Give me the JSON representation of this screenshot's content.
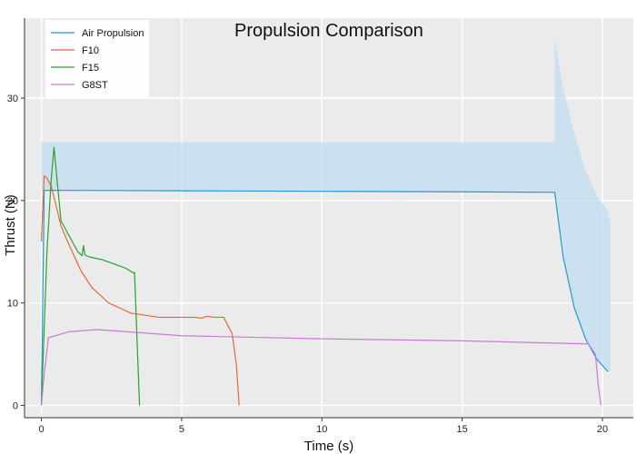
{
  "chart_data": {
    "type": "line",
    "title": "Propulsion Comparison",
    "xlabel": "Time (s)",
    "ylabel": "Thrust (N)",
    "xlim": [
      -0.6,
      21.1
    ],
    "ylim": [
      -1.2,
      37.8
    ],
    "xticks": [
      0,
      5,
      10,
      15,
      20
    ],
    "yticks": [
      0,
      10,
      20,
      30
    ],
    "grid": true,
    "legend_position": "top-left",
    "background": "#ebebeb",
    "series": [
      {
        "name": "Air Propulsion",
        "color": "#1f9ad6",
        "x": [
          0,
          0.05,
          0.1,
          5,
          10,
          15,
          18.3,
          18.6,
          19.0,
          19.4,
          19.8,
          20.2
        ],
        "y": [
          0,
          10,
          21.0,
          20.95,
          20.9,
          20.85,
          20.8,
          14.5,
          9.5,
          6.5,
          4.5,
          3.3
        ]
      },
      {
        "name": "F10",
        "color": "#e8663a",
        "x": [
          0,
          0.1,
          0.2,
          0.35,
          0.5,
          0.7,
          1.0,
          1.4,
          1.8,
          2.4,
          3.2,
          4.2,
          5.5,
          5.7,
          5.9,
          6.2,
          6.5,
          6.8,
          6.95,
          7.05
        ],
        "y": [
          16,
          22.4,
          22.2,
          21.4,
          19.8,
          17.5,
          15.6,
          13.2,
          11.5,
          10.0,
          9.0,
          8.6,
          8.6,
          8.5,
          8.7,
          8.6,
          8.6,
          7.0,
          4.0,
          0
        ]
      },
      {
        "name": "F15",
        "color": "#2ca02c",
        "x": [
          0,
          0.2,
          0.35,
          0.45,
          0.7,
          1.0,
          1.3,
          1.45,
          1.5,
          1.55,
          1.7,
          2.2,
          2.6,
          3.0,
          3.3,
          3.32,
          3.5
        ],
        "y": [
          0,
          15,
          22,
          25.2,
          18.0,
          16.5,
          15.0,
          14.6,
          15.6,
          14.7,
          14.5,
          14.2,
          13.8,
          13.4,
          12.9,
          13.0,
          0
        ]
      },
      {
        "name": "G8ST",
        "color": "#c97bd6",
        "x": [
          0,
          0.1,
          0.25,
          1.0,
          2.0,
          3.0,
          5.0,
          10,
          15,
          19.5,
          19.75,
          19.85,
          19.95
        ],
        "y": [
          0,
          3.0,
          6.6,
          7.2,
          7.4,
          7.2,
          6.8,
          6.5,
          6.3,
          6.0,
          5.0,
          2.0,
          0
        ]
      }
    ],
    "band": {
      "name": "Air Propulsion",
      "color": "#c7dff0",
      "x": [
        0,
        18.3,
        18.3,
        18.6,
        19.0,
        19.4,
        19.8,
        20.2,
        20.3
      ],
      "upper": [
        25.7,
        25.7,
        35.8,
        31.0,
        26.5,
        23.0,
        20.5,
        19.0,
        17.5
      ],
      "lower": [
        21.0,
        20.8,
        20.8,
        14.5,
        9.5,
        6.5,
        4.5,
        3.3,
        3.3
      ]
    }
  }
}
